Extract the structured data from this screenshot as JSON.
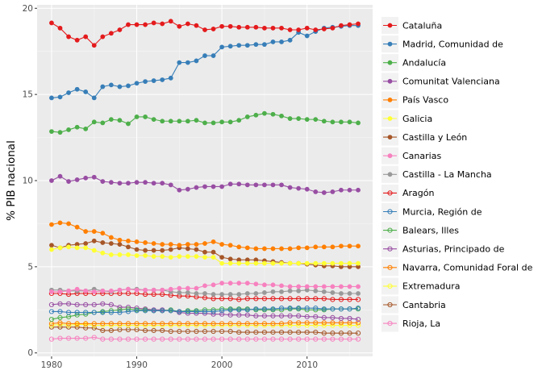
{
  "chart_data": {
    "type": "line",
    "title": "",
    "xlabel": "",
    "ylabel": "% PIB nacional",
    "xlim": [
      1978.3,
      2017.7
    ],
    "ylim": [
      -0.2,
      20.2
    ],
    "x_ticks": [
      1980,
      1990,
      2000,
      2010
    ],
    "y_ticks": [
      0,
      5,
      10,
      15,
      20
    ],
    "grid": true,
    "legend_position": "right",
    "x": [
      1980,
      1981,
      1982,
      1983,
      1984,
      1985,
      1986,
      1987,
      1988,
      1989,
      1990,
      1991,
      1992,
      1993,
      1994,
      1995,
      1996,
      1997,
      1998,
      1999,
      2000,
      2001,
      2002,
      2003,
      2004,
      2005,
      2006,
      2007,
      2008,
      2009,
      2010,
      2011,
      2012,
      2013,
      2014,
      2015,
      2016
    ],
    "series": [
      {
        "name": "Cataluña",
        "color": "#e41a1c",
        "marker": "filled",
        "values": [
          19.15,
          18.85,
          18.35,
          18.15,
          18.35,
          17.85,
          18.35,
          18.55,
          18.75,
          19.05,
          19.05,
          19.05,
          19.15,
          19.1,
          19.25,
          18.95,
          19.1,
          19.0,
          18.75,
          18.8,
          18.95,
          18.95,
          18.9,
          18.9,
          18.9,
          18.85,
          18.85,
          18.85,
          18.75,
          18.75,
          18.85,
          18.75,
          18.8,
          18.85,
          19.0,
          19.05,
          19.1
        ]
      },
      {
        "name": "Madrid, Comunidad de",
        "color": "#377eb8",
        "marker": "filled",
        "values": [
          14.8,
          14.85,
          15.1,
          15.3,
          15.15,
          14.8,
          15.45,
          15.55,
          15.45,
          15.5,
          15.65,
          15.75,
          15.8,
          15.85,
          15.95,
          16.85,
          16.85,
          16.95,
          17.25,
          17.25,
          17.75,
          17.8,
          17.85,
          17.85,
          17.9,
          17.9,
          18.05,
          18.05,
          18.15,
          18.6,
          18.4,
          18.65,
          18.85,
          18.9,
          18.95,
          19.0,
          19.0
        ]
      },
      {
        "name": "Andalucía",
        "color": "#4daf4a",
        "marker": "filled",
        "values": [
          12.85,
          12.8,
          12.95,
          13.1,
          13.0,
          13.4,
          13.35,
          13.55,
          13.5,
          13.3,
          13.7,
          13.7,
          13.55,
          13.45,
          13.45,
          13.45,
          13.45,
          13.5,
          13.35,
          13.35,
          13.4,
          13.4,
          13.5,
          13.7,
          13.8,
          13.9,
          13.85,
          13.75,
          13.6,
          13.6,
          13.55,
          13.55,
          13.45,
          13.4,
          13.4,
          13.4,
          13.35
        ]
      },
      {
        "name": "Comunitat Valenciana",
        "color": "#984ea3",
        "marker": "filled",
        "values": [
          10.0,
          10.25,
          9.95,
          10.05,
          10.15,
          10.2,
          9.95,
          9.9,
          9.85,
          9.85,
          9.9,
          9.9,
          9.85,
          9.85,
          9.75,
          9.45,
          9.5,
          9.6,
          9.65,
          9.65,
          9.65,
          9.8,
          9.8,
          9.75,
          9.75,
          9.75,
          9.75,
          9.75,
          9.6,
          9.55,
          9.5,
          9.35,
          9.3,
          9.35,
          9.45,
          9.45,
          9.45
        ]
      },
      {
        "name": "País Vasco",
        "color": "#ff7f00",
        "marker": "filled",
        "values": [
          7.45,
          7.55,
          7.5,
          7.3,
          7.05,
          7.05,
          6.95,
          6.7,
          6.55,
          6.5,
          6.45,
          6.4,
          6.35,
          6.3,
          6.3,
          6.25,
          6.3,
          6.3,
          6.35,
          6.45,
          6.3,
          6.25,
          6.15,
          6.1,
          6.05,
          6.05,
          6.05,
          6.05,
          6.05,
          6.1,
          6.1,
          6.15,
          6.15,
          6.15,
          6.2,
          6.2,
          6.2
        ]
      },
      {
        "name": "Galicia",
        "color": "#ffff33",
        "marker": "filled",
        "values": [
          6.0,
          6.1,
          6.15,
          6.1,
          6.1,
          5.95,
          5.8,
          5.7,
          5.7,
          5.7,
          5.65,
          5.65,
          5.6,
          5.6,
          5.55,
          5.6,
          5.6,
          5.6,
          5.55,
          5.55,
          5.2,
          5.2,
          5.2,
          5.2,
          5.2,
          5.2,
          5.2,
          5.2,
          5.2,
          5.2,
          5.2,
          5.2,
          5.2,
          5.2,
          5.2,
          5.2,
          5.2
        ]
      },
      {
        "name": "Castilla y León",
        "color": "#a65628",
        "marker": "filled",
        "values": [
          6.25,
          6.1,
          6.25,
          6.3,
          6.35,
          6.5,
          6.4,
          6.35,
          6.3,
          6.15,
          6.0,
          5.95,
          5.95,
          5.95,
          6.0,
          6.1,
          6.05,
          6.0,
          5.85,
          5.85,
          5.55,
          5.45,
          5.4,
          5.4,
          5.4,
          5.35,
          5.3,
          5.25,
          5.2,
          5.2,
          5.15,
          5.1,
          5.05,
          5.05,
          5.0,
          5.0,
          5.0
        ]
      },
      {
        "name": "Canarias",
        "color": "#f781bf",
        "marker": "filled",
        "values": [
          3.55,
          3.55,
          3.6,
          3.7,
          3.6,
          3.55,
          3.6,
          3.6,
          3.65,
          3.7,
          3.65,
          3.65,
          3.65,
          3.65,
          3.7,
          3.75,
          3.75,
          3.75,
          3.9,
          3.95,
          4.05,
          4.05,
          4.05,
          4.05,
          4.0,
          3.95,
          3.95,
          3.9,
          3.85,
          3.85,
          3.85,
          3.85,
          3.85,
          3.85,
          3.85,
          3.85,
          3.85
        ]
      },
      {
        "name": "Castilla - La Mancha",
        "color": "#999999",
        "marker": "filled",
        "values": [
          3.65,
          3.65,
          3.6,
          3.6,
          3.6,
          3.7,
          3.6,
          3.55,
          3.65,
          3.7,
          3.7,
          3.65,
          3.65,
          3.65,
          3.55,
          3.5,
          3.5,
          3.45,
          3.45,
          3.4,
          3.4,
          3.4,
          3.4,
          3.45,
          3.45,
          3.5,
          3.55,
          3.55,
          3.6,
          3.6,
          3.65,
          3.6,
          3.55,
          3.5,
          3.45,
          3.45,
          3.45
        ]
      },
      {
        "name": "Aragón",
        "color": "#e41a1c",
        "marker": "open",
        "values": [
          3.45,
          3.45,
          3.4,
          3.45,
          3.45,
          3.45,
          3.45,
          3.45,
          3.45,
          3.45,
          3.45,
          3.4,
          3.4,
          3.4,
          3.35,
          3.3,
          3.3,
          3.25,
          3.2,
          3.15,
          3.15,
          3.15,
          3.1,
          3.15,
          3.15,
          3.15,
          3.15,
          3.15,
          3.15,
          3.15,
          3.15,
          3.15,
          3.15,
          3.1,
          3.1,
          3.1,
          3.1
        ]
      },
      {
        "name": "Murcia, Región de",
        "color": "#377eb8",
        "marker": "open",
        "values": [
          2.4,
          2.4,
          2.35,
          2.35,
          2.35,
          2.35,
          2.35,
          2.35,
          2.35,
          2.4,
          2.45,
          2.45,
          2.45,
          2.45,
          2.45,
          2.4,
          2.4,
          2.4,
          2.4,
          2.4,
          2.45,
          2.5,
          2.5,
          2.5,
          2.55,
          2.55,
          2.55,
          2.6,
          2.6,
          2.6,
          2.6,
          2.6,
          2.55,
          2.55,
          2.55,
          2.55,
          2.6
        ]
      },
      {
        "name": "Balears, Illes",
        "color": "#4daf4a",
        "marker": "open",
        "values": [
          1.95,
          2.05,
          2.1,
          2.2,
          2.25,
          2.35,
          2.4,
          2.45,
          2.5,
          2.55,
          2.5,
          2.5,
          2.45,
          2.45,
          2.5,
          2.4,
          2.45,
          2.45,
          2.5,
          2.5,
          2.55,
          2.55,
          2.55,
          2.55,
          2.5,
          2.5,
          2.5,
          2.5,
          2.55,
          2.55,
          2.5,
          2.5,
          2.5,
          2.55,
          2.55,
          2.55,
          2.55
        ]
      },
      {
        "name": "Asturias, Principado de",
        "color": "#984ea3",
        "marker": "open",
        "values": [
          2.8,
          2.85,
          2.85,
          2.8,
          2.8,
          2.8,
          2.85,
          2.8,
          2.65,
          2.65,
          2.6,
          2.55,
          2.5,
          2.5,
          2.45,
          2.35,
          2.3,
          2.3,
          2.3,
          2.25,
          2.25,
          2.2,
          2.2,
          2.2,
          2.15,
          2.15,
          2.15,
          2.15,
          2.15,
          2.15,
          2.1,
          2.1,
          2.05,
          2.05,
          2.0,
          2.0,
          1.95
        ]
      },
      {
        "name": "Navarra, Comunidad Foral de",
        "color": "#ff7f00",
        "marker": "open",
        "values": [
          1.7,
          1.75,
          1.7,
          1.7,
          1.7,
          1.7,
          1.7,
          1.7,
          1.7,
          1.7,
          1.7,
          1.7,
          1.7,
          1.7,
          1.7,
          1.7,
          1.7,
          1.7,
          1.7,
          1.7,
          1.7,
          1.7,
          1.7,
          1.7,
          1.7,
          1.7,
          1.7,
          1.7,
          1.75,
          1.75,
          1.75,
          1.75,
          1.75,
          1.75,
          1.75,
          1.75,
          1.75
        ]
      },
      {
        "name": "Extremadura",
        "color": "#ffff33",
        "marker": "open",
        "values": [
          1.6,
          1.65,
          1.6,
          1.65,
          1.65,
          1.6,
          1.6,
          1.6,
          1.6,
          1.6,
          1.6,
          1.6,
          1.6,
          1.6,
          1.6,
          1.6,
          1.6,
          1.6,
          1.6,
          1.6,
          1.6,
          1.6,
          1.6,
          1.6,
          1.6,
          1.6,
          1.6,
          1.6,
          1.6,
          1.6,
          1.6,
          1.6,
          1.6,
          1.6,
          1.6,
          1.6,
          1.6
        ]
      },
      {
        "name": "Cantabria",
        "color": "#a65628",
        "marker": "open",
        "values": [
          1.5,
          1.5,
          1.5,
          1.5,
          1.45,
          1.45,
          1.3,
          1.3,
          1.35,
          1.35,
          1.35,
          1.3,
          1.3,
          1.3,
          1.25,
          1.25,
          1.25,
          1.25,
          1.25,
          1.25,
          1.25,
          1.25,
          1.2,
          1.2,
          1.2,
          1.2,
          1.2,
          1.2,
          1.2,
          1.2,
          1.2,
          1.2,
          1.15,
          1.15,
          1.15,
          1.15,
          1.15
        ]
      },
      {
        "name": "Rioja, La",
        "color": "#f781bf",
        "marker": "open",
        "values": [
          0.8,
          0.85,
          0.85,
          0.85,
          0.85,
          0.9,
          0.8,
          0.8,
          0.8,
          0.8,
          0.8,
          0.8,
          0.8,
          0.8,
          0.8,
          0.8,
          0.8,
          0.8,
          0.8,
          0.8,
          0.8,
          0.8,
          0.8,
          0.8,
          0.8,
          0.8,
          0.8,
          0.8,
          0.8,
          0.8,
          0.8,
          0.8,
          0.8,
          0.8,
          0.8,
          0.8,
          0.8
        ]
      }
    ]
  }
}
